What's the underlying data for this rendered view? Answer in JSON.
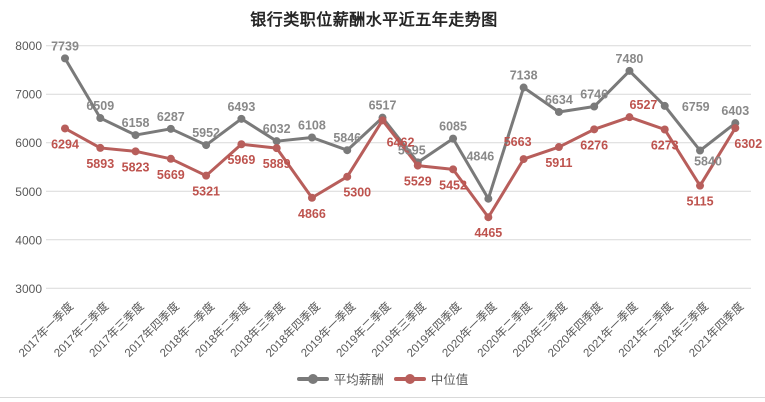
{
  "title": "银行类职位薪酬水平近五年走势图",
  "colors": {
    "title": "#262626",
    "grid": "#D9D9D9",
    "axis_label": "#595959",
    "divider": "#D9D9D9",
    "legend_label": "#595959",
    "series_average": "#7A7A7A",
    "series_median": "#B85E5B"
  },
  "chart_data": {
    "type": "line",
    "title": "银行类职位薪酬水平近五年走势图",
    "categories": [
      "2017年一季度",
      "2017年二季度",
      "2017年三季度",
      "2017年四季度",
      "2018年一季度",
      "2018年二季度",
      "2018年三季度",
      "2018年四季度",
      "2019年一季度",
      "2019年二季度",
      "2019年三季度",
      "2019年四季度",
      "2020年一季度",
      "2020年二季度",
      "2020年三季度",
      "2020年四季度",
      "2021年一季度",
      "2021年二季度",
      "2021年三季度",
      "2021年四季度"
    ],
    "series": [
      {
        "key": "average-salary",
        "name": "平均薪酬",
        "color": "#7A7A7A",
        "label_color": "#898989",
        "values": [
          7739,
          6509,
          6158,
          6287,
          5952,
          6493,
          6032,
          6108,
          5846,
          6517,
          5595,
          6085,
          4846,
          7138,
          6634,
          6746,
          7480,
          6759,
          5840,
          6403
        ],
        "label_default": "above",
        "label_overrides": {
          "10": {
            "dx": -6
          },
          "12": {
            "dx": -8,
            "dy": -30
          },
          "17": {
            "dx": 31,
            "dy": 13
          },
          "18": {
            "side": "below",
            "dx": 8,
            "dy": -5
          }
        }
      },
      {
        "key": "median",
        "name": "中位值",
        "color": "#B85E5B",
        "label_color": "#BE534E",
        "values": [
          6294,
          5893,
          5823,
          5669,
          5321,
          5969,
          5889,
          4866,
          5300,
          6462,
          5529,
          5452,
          4465,
          5663,
          5911,
          6276,
          6527,
          6273,
          5115,
          6302
        ],
        "label_default": "below",
        "label_overrides": {
          "8": {
            "dx": 10
          },
          "9": {
            "dx": 18,
            "dy": 6
          },
          "13": {
            "side": "above",
            "dx": -6,
            "dy": -5
          },
          "16": {
            "side": "above",
            "dx": 14
          },
          "19": {
            "dx": 13
          }
        }
      }
    ],
    "ylim": [
      3000,
      8000
    ],
    "yticks": [
      3000,
      4000,
      5000,
      6000,
      7000,
      8000
    ],
    "grid": true,
    "legend_position": "bottom"
  }
}
